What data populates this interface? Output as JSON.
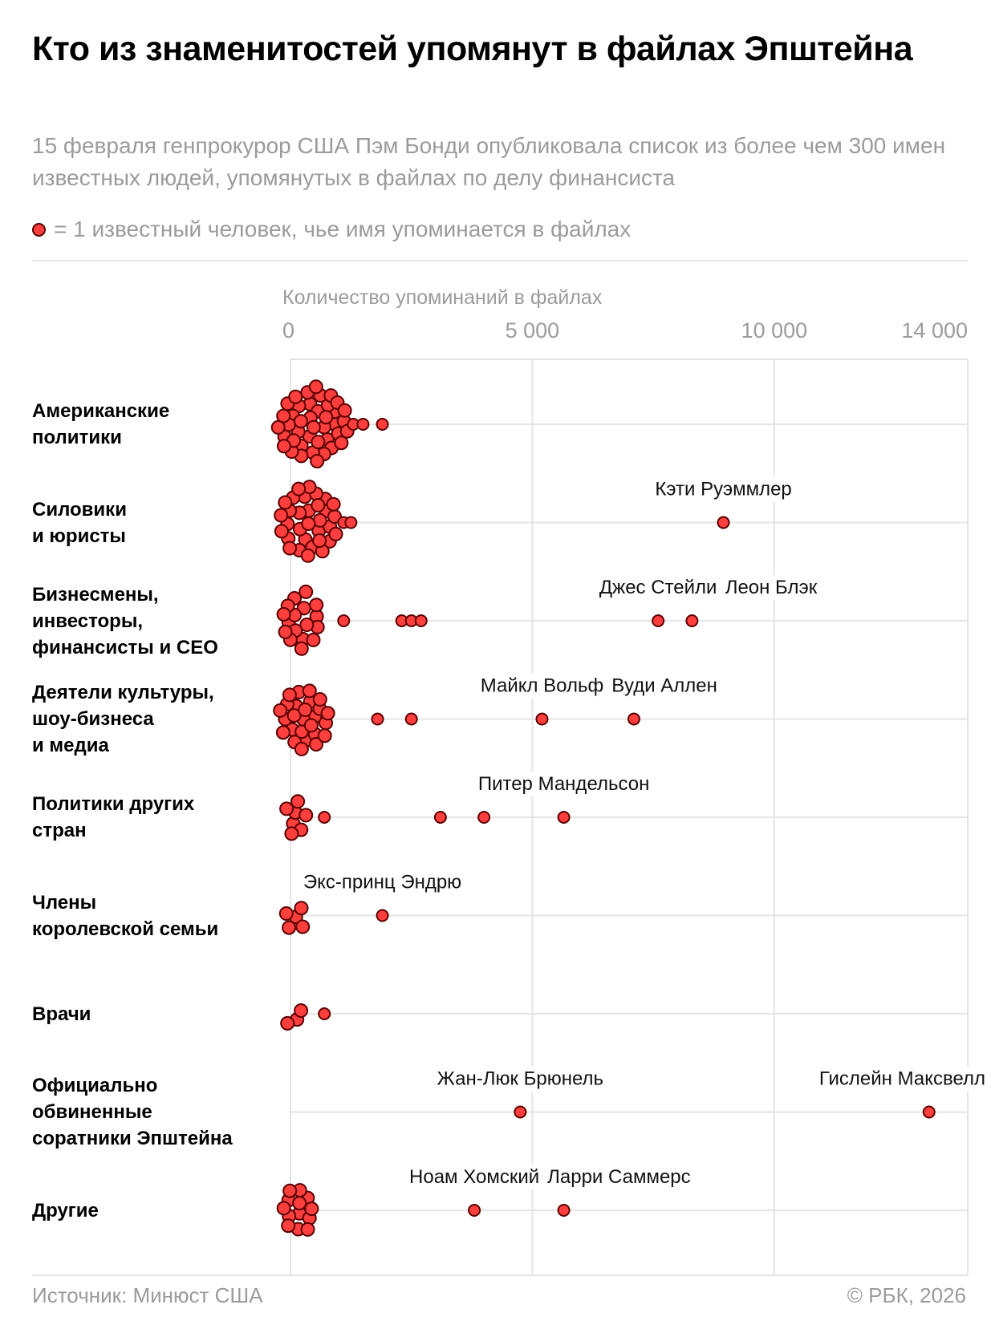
{
  "header": {
    "title": "Кто из знаменитостей упомянут в файлах Эпштейна",
    "subtitle": "15 февраля генпрокурор США Пэм Бонди опубликовала список из более чем 300 имен известных людей, упомянутых в файлах по делу финансиста",
    "legend_text": "= 1 известный человек, чье имя упоминается в файлах"
  },
  "footer": {
    "source": "Источник: Минюст США",
    "copyright": "© РБК, 2026"
  },
  "colors": {
    "dot_fill": "#ff3e3e",
    "dot_stroke": "#5a0000",
    "grid": "#e4e4e4",
    "muted_text": "#9b9b9b"
  },
  "chart_data": {
    "type": "scatter",
    "subtype": "beeswarm",
    "title": "Кто из знаменитостей упомянут в файлах Эпштейна",
    "xlabel": "Количество упоминаний в файлах",
    "xlim": [
      0,
      14000
    ],
    "x_ticks": [
      0,
      5000,
      10000,
      14000
    ],
    "x_tick_labels": [
      "0",
      "5 000",
      "10 000",
      "14 000"
    ],
    "grid": true,
    "unit_note": "1 точка = 1 известный человек",
    "categories": [
      {
        "label": "Американские политики",
        "label_lines": [
          "Американские",
          "политики"
        ],
        "cluster_count": 150,
        "cluster_max": 1200,
        "outliers": [
          {
            "x": 1300
          },
          {
            "x": 1500
          },
          {
            "x": 1900
          }
        ]
      },
      {
        "label": "Силовики и юристы",
        "label_lines": [
          "Силовики",
          "и юристы"
        ],
        "cluster_count": 130,
        "cluster_max": 1000,
        "outliers": [
          {
            "x": 1100
          },
          {
            "x": 1250
          },
          {
            "x": 8950,
            "name": "Кэти Руэммлер"
          }
        ]
      },
      {
        "label": "Бизнесмены, инвесторы, финансисты и СЕО",
        "label_lines": [
          "Бизнесмены,",
          "инвесторы,",
          "финансисты и СЕО"
        ],
        "cluster_count": 60,
        "cluster_max": 650,
        "outliers": [
          {
            "x": 1100
          },
          {
            "x": 2300
          },
          {
            "x": 2500
          },
          {
            "x": 2700
          },
          {
            "x": 7600,
            "name": "Джес Стейли"
          },
          {
            "x": 8300,
            "name": "Леон Блэк"
          }
        ]
      },
      {
        "label": "Деятели культуры, шоу-бизнеса и медиа",
        "label_lines": [
          "Деятели культуры,",
          "шоу-бизнеса",
          "и медиа"
        ],
        "cluster_count": 50,
        "cluster_max": 750,
        "outliers": [
          {
            "x": 1800
          },
          {
            "x": 2500
          },
          {
            "x": 5200,
            "name": "Майкл Вольф"
          },
          {
            "x": 7100,
            "name": "Вуди Аллен"
          }
        ]
      },
      {
        "label": "Политики других стран",
        "label_lines": [
          "Политики других",
          "стран"
        ],
        "cluster_count": 7,
        "cluster_max": 350,
        "outliers": [
          {
            "x": 700
          },
          {
            "x": 3100
          },
          {
            "x": 4000
          },
          {
            "x": 5650,
            "name": "Питер Мандельсон"
          }
        ]
      },
      {
        "label": "Члены королевской семьи",
        "label_lines": [
          "Члены",
          "королевской семьи"
        ],
        "cluster_count": 5,
        "cluster_max": 250,
        "outliers": [
          {
            "x": 1900,
            "name": "Экс-принц Эндрю"
          }
        ]
      },
      {
        "label": "Врачи",
        "label_lines": [
          "Врачи"
        ],
        "cluster_count": 3,
        "cluster_max": 150,
        "outliers": [
          {
            "x": 700
          }
        ]
      },
      {
        "label": "Официально обвиненные соратники Эпштейна",
        "label_lines": [
          "Официально",
          "обвиненные",
          "соратники  Эпштейна"
        ],
        "cluster_count": 0,
        "cluster_max": 0,
        "outliers": [
          {
            "x": 4750,
            "name": "Жан-Люк Брюнель"
          },
          {
            "x": 13200,
            "name": "Гислейн Максвелл"
          }
        ]
      },
      {
        "label": "Другие",
        "label_lines": [
          "Другие"
        ],
        "cluster_count": 30,
        "cluster_max": 500,
        "outliers": [
          {
            "x": 3800,
            "name": "Ноам Хомский"
          },
          {
            "x": 5650,
            "name": "Ларри Саммерс"
          }
        ]
      }
    ]
  }
}
